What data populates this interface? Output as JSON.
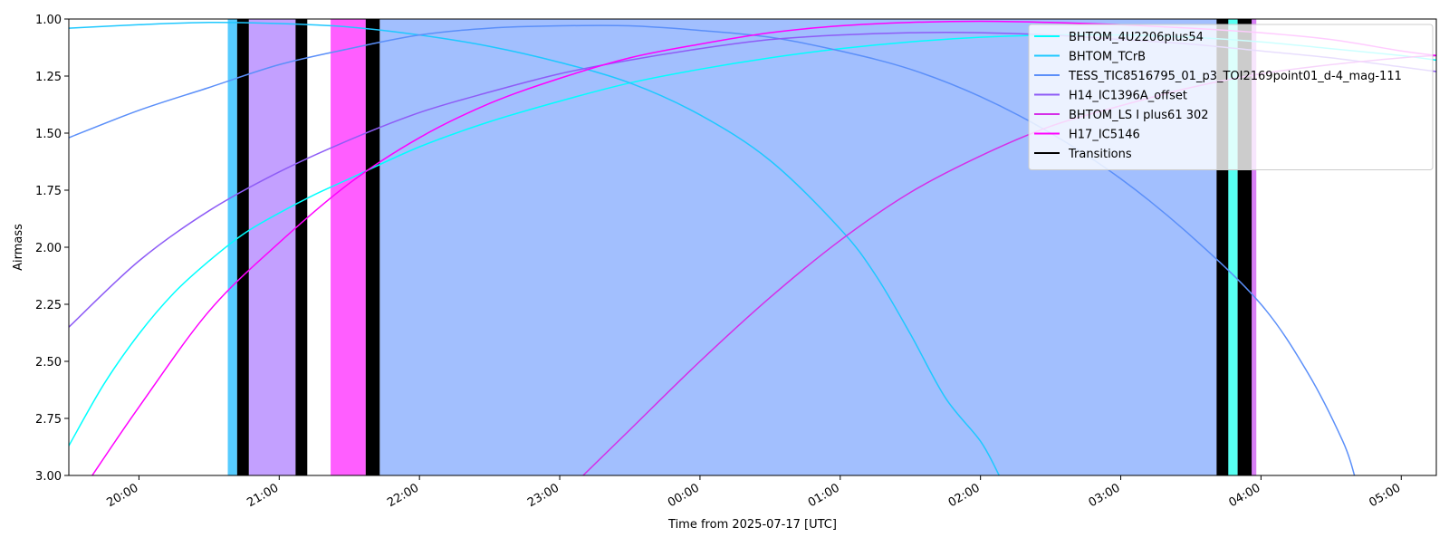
{
  "chart_data": {
    "type": "line",
    "title": "",
    "xlabel": "Time from 2025-07-17 [UTC]",
    "ylabel": "Airmass",
    "y_inverted": true,
    "ylim": [
      3.0,
      1.0
    ],
    "xlim": [
      "2025-07-17T19:30",
      "2025-07-18T05:15"
    ],
    "grid": false,
    "legend_position": "top-right",
    "x_tick_labels": [
      {
        "t": "2025-07-17T20:00",
        "label": "20:00"
      },
      {
        "t": "2025-07-17T21:00",
        "label": "21:00"
      },
      {
        "t": "2025-07-17T22:00",
        "label": "22:00"
      },
      {
        "t": "2025-07-17T23:00",
        "label": "23:00"
      },
      {
        "t": "2025-07-18T00:00",
        "label": "00:00"
      },
      {
        "t": "2025-07-18T01:00",
        "label": "01:00"
      },
      {
        "t": "2025-07-18T02:00",
        "label": "02:00"
      },
      {
        "t": "2025-07-18T03:00",
        "label": "03:00"
      },
      {
        "t": "2025-07-18T04:00",
        "label": "04:00"
      },
      {
        "t": "2025-07-18T05:00",
        "label": "05:00"
      }
    ],
    "y_tick_labels": [
      {
        "v": 1.0,
        "label": "1.00"
      },
      {
        "v": 1.25,
        "label": "1.25"
      },
      {
        "v": 1.5,
        "label": "1.50"
      },
      {
        "v": 1.75,
        "label": "1.75"
      },
      {
        "v": 2.0,
        "label": "2.00"
      },
      {
        "v": 2.25,
        "label": "2.25"
      },
      {
        "v": 2.5,
        "label": "2.50"
      },
      {
        "v": 2.75,
        "label": "2.75"
      },
      {
        "v": 3.0,
        "label": "3.00"
      }
    ],
    "series": [
      {
        "name": "BHTOM_4U2206plus54",
        "color": "#00ffff",
        "points": [
          [
            "2025-07-17T19:30",
            2.87
          ],
          [
            "2025-07-17T19:45",
            2.6
          ],
          [
            "2025-07-17T20:00",
            2.38
          ],
          [
            "2025-07-17T20:15",
            2.2
          ],
          [
            "2025-07-17T20:30",
            2.06
          ],
          [
            "2025-07-17T20:45",
            1.94
          ],
          [
            "2025-07-17T21:00",
            1.85
          ],
          [
            "2025-07-17T21:15",
            1.77
          ],
          [
            "2025-07-17T21:30",
            1.7
          ],
          [
            "2025-07-17T22:00",
            1.56
          ],
          [
            "2025-07-17T22:30",
            1.45
          ],
          [
            "2025-07-17T23:00",
            1.36
          ],
          [
            "2025-07-17T23:30",
            1.28
          ],
          [
            "2025-07-18T00:00",
            1.22
          ],
          [
            "2025-07-18T00:30",
            1.17
          ],
          [
            "2025-07-18T01:00",
            1.13
          ],
          [
            "2025-07-18T01:30",
            1.1
          ],
          [
            "2025-07-18T02:00",
            1.08
          ],
          [
            "2025-07-18T02:30",
            1.07
          ],
          [
            "2025-07-18T03:00",
            1.07
          ],
          [
            "2025-07-18T03:30",
            1.08
          ],
          [
            "2025-07-18T04:00",
            1.1
          ],
          [
            "2025-07-18T04:30",
            1.13
          ],
          [
            "2025-07-18T05:00",
            1.16
          ],
          [
            "2025-07-18T05:15",
            1.18
          ]
        ]
      },
      {
        "name": "BHTOM_TCrB",
        "color": "#1ec8ff",
        "points": [
          [
            "2025-07-17T19:30",
            1.04
          ],
          [
            "2025-07-17T20:00",
            1.025
          ],
          [
            "2025-07-17T20:30",
            1.015
          ],
          [
            "2025-07-17T21:00",
            1.02
          ],
          [
            "2025-07-17T21:30",
            1.035
          ],
          [
            "2025-07-17T22:00",
            1.07
          ],
          [
            "2025-07-17T22:30",
            1.12
          ],
          [
            "2025-07-17T23:00",
            1.19
          ],
          [
            "2025-07-17T23:30",
            1.28
          ],
          [
            "2025-07-18T00:00",
            1.42
          ],
          [
            "2025-07-18T00:30",
            1.62
          ],
          [
            "2025-07-18T01:00",
            1.92
          ],
          [
            "2025-07-18T01:15",
            2.12
          ],
          [
            "2025-07-18T01:30",
            2.38
          ],
          [
            "2025-07-18T01:45",
            2.66
          ],
          [
            "2025-07-18T02:00",
            2.85
          ],
          [
            "2025-07-18T02:08",
            3.0
          ]
        ]
      },
      {
        "name": "TESS_TIC8516795_01_p3_TOI2169point01_d-4_mag-111",
        "color": "#5b8ff9",
        "points": [
          [
            "2025-07-17T19:30",
            1.52
          ],
          [
            "2025-07-17T20:00",
            1.4
          ],
          [
            "2025-07-17T20:30",
            1.3
          ],
          [
            "2025-07-17T21:00",
            1.2
          ],
          [
            "2025-07-17T21:30",
            1.13
          ],
          [
            "2025-07-17T22:00",
            1.07
          ],
          [
            "2025-07-17T22:30",
            1.04
          ],
          [
            "2025-07-17T23:00",
            1.03
          ],
          [
            "2025-07-17T23:30",
            1.03
          ],
          [
            "2025-07-18T00:00",
            1.05
          ],
          [
            "2025-07-18T00:30",
            1.08
          ],
          [
            "2025-07-18T01:00",
            1.14
          ],
          [
            "2025-07-18T01:30",
            1.22
          ],
          [
            "2025-07-18T02:00",
            1.34
          ],
          [
            "2025-07-18T02:30",
            1.5
          ],
          [
            "2025-07-18T03:00",
            1.7
          ],
          [
            "2025-07-18T03:30",
            1.95
          ],
          [
            "2025-07-18T04:00",
            2.25
          ],
          [
            "2025-07-18T04:20",
            2.55
          ],
          [
            "2025-07-18T04:35",
            2.85
          ],
          [
            "2025-07-18T04:40",
            3.0
          ]
        ]
      },
      {
        "name": "H14_IC1396A_offset",
        "color": "#8e5cf6",
        "points": [
          [
            "2025-07-17T19:30",
            2.35
          ],
          [
            "2025-07-17T20:00",
            2.06
          ],
          [
            "2025-07-17T20:30",
            1.84
          ],
          [
            "2025-07-17T21:00",
            1.67
          ],
          [
            "2025-07-17T21:30",
            1.53
          ],
          [
            "2025-07-17T22:00",
            1.41
          ],
          [
            "2025-07-17T22:30",
            1.32
          ],
          [
            "2025-07-17T23:00",
            1.24
          ],
          [
            "2025-07-17T23:30",
            1.18
          ],
          [
            "2025-07-18T00:00",
            1.13
          ],
          [
            "2025-07-18T00:30",
            1.09
          ],
          [
            "2025-07-18T01:00",
            1.07
          ],
          [
            "2025-07-18T01:30",
            1.06
          ],
          [
            "2025-07-18T02:00",
            1.06
          ],
          [
            "2025-07-18T02:30",
            1.07
          ],
          [
            "2025-07-18T03:00",
            1.09
          ],
          [
            "2025-07-18T03:30",
            1.11
          ],
          [
            "2025-07-18T04:00",
            1.14
          ],
          [
            "2025-07-18T04:30",
            1.17
          ],
          [
            "2025-07-18T05:00",
            1.21
          ],
          [
            "2025-07-18T05:15",
            1.23
          ]
        ]
      },
      {
        "name": "BHTOM_LS I plus61 302",
        "color": "#d52fe8",
        "points": [
          [
            "2025-07-17T23:10",
            3.0
          ],
          [
            "2025-07-17T23:30",
            2.8
          ],
          [
            "2025-07-18T00:00",
            2.5
          ],
          [
            "2025-07-18T00:30",
            2.22
          ],
          [
            "2025-07-18T01:00",
            1.97
          ],
          [
            "2025-07-18T01:30",
            1.76
          ],
          [
            "2025-07-18T02:00",
            1.6
          ],
          [
            "2025-07-18T02:30",
            1.47
          ],
          [
            "2025-07-18T03:00",
            1.38
          ],
          [
            "2025-07-18T03:30",
            1.3
          ],
          [
            "2025-07-18T04:00",
            1.24
          ],
          [
            "2025-07-18T04:30",
            1.2
          ],
          [
            "2025-07-18T05:00",
            1.17
          ],
          [
            "2025-07-18T05:15",
            1.16
          ]
        ]
      },
      {
        "name": "H17_IC5146",
        "color": "#ff00ff",
        "points": [
          [
            "2025-07-17T19:40",
            3.0
          ],
          [
            "2025-07-17T20:00",
            2.7
          ],
          [
            "2025-07-17T20:30",
            2.28
          ],
          [
            "2025-07-17T21:00",
            1.98
          ],
          [
            "2025-07-17T21:30",
            1.72
          ],
          [
            "2025-07-17T22:00",
            1.52
          ],
          [
            "2025-07-17T22:30",
            1.37
          ],
          [
            "2025-07-17T23:00",
            1.26
          ],
          [
            "2025-07-17T23:30",
            1.17
          ],
          [
            "2025-07-18T00:00",
            1.11
          ],
          [
            "2025-07-18T00:30",
            1.06
          ],
          [
            "2025-07-18T01:00",
            1.03
          ],
          [
            "2025-07-18T01:30",
            1.015
          ],
          [
            "2025-07-18T02:00",
            1.01
          ],
          [
            "2025-07-18T02:30",
            1.015
          ],
          [
            "2025-07-18T03:00",
            1.025
          ],
          [
            "2025-07-18T03:30",
            1.04
          ],
          [
            "2025-07-18T04:00",
            1.06
          ],
          [
            "2025-07-18T04:30",
            1.09
          ],
          [
            "2025-07-18T05:00",
            1.14
          ],
          [
            "2025-07-18T05:15",
            1.16
          ]
        ]
      }
    ],
    "shaded_intervals": [
      {
        "start": "2025-07-17T20:38",
        "end": "2025-07-17T20:42",
        "color": "#56ccff"
      },
      {
        "start": "2025-07-17T20:47",
        "end": "2025-07-17T21:07",
        "color": "#c3a0ff"
      },
      {
        "start": "2025-07-17T21:22",
        "end": "2025-07-17T21:37",
        "color": "#ff5eff"
      },
      {
        "start": "2025-07-17T21:43",
        "end": "2025-07-18T03:41",
        "color": "#a2bffe"
      },
      {
        "start": "2025-07-18T03:44",
        "end": "2025-07-18T03:50",
        "color": "#57fff1"
      },
      {
        "start": "2025-07-18T03:53",
        "end": "2025-07-18T03:58",
        "color": "#d880f5"
      }
    ],
    "transitions": {
      "name": "Transitions",
      "color": "#000000",
      "intervals": [
        [
          "2025-07-17T20:42",
          "2025-07-17T20:47"
        ],
        [
          "2025-07-17T21:07",
          "2025-07-17T21:12"
        ],
        [
          "2025-07-17T21:37",
          "2025-07-17T21:43"
        ],
        [
          "2025-07-18T03:41",
          "2025-07-18T03:46"
        ],
        [
          "2025-07-18T03:50",
          "2025-07-18T03:56"
        ]
      ]
    },
    "legend": [
      {
        "name": "BHTOM_4U2206plus54",
        "color": "#00ffff"
      },
      {
        "name": "BHTOM_TCrB",
        "color": "#1ec8ff"
      },
      {
        "name": "TESS_TIC8516795_01_p3_TOI2169point01_d-4_mag-111",
        "color": "#5b8ff9"
      },
      {
        "name": "H14_IC1396A_offset",
        "color": "#8e5cf6"
      },
      {
        "name": "BHTOM_LS I plus61 302",
        "color": "#d52fe8"
      },
      {
        "name": "H17_IC5146",
        "color": "#ff00ff"
      },
      {
        "name": "Transitions",
        "color": "#000000"
      }
    ]
  }
}
